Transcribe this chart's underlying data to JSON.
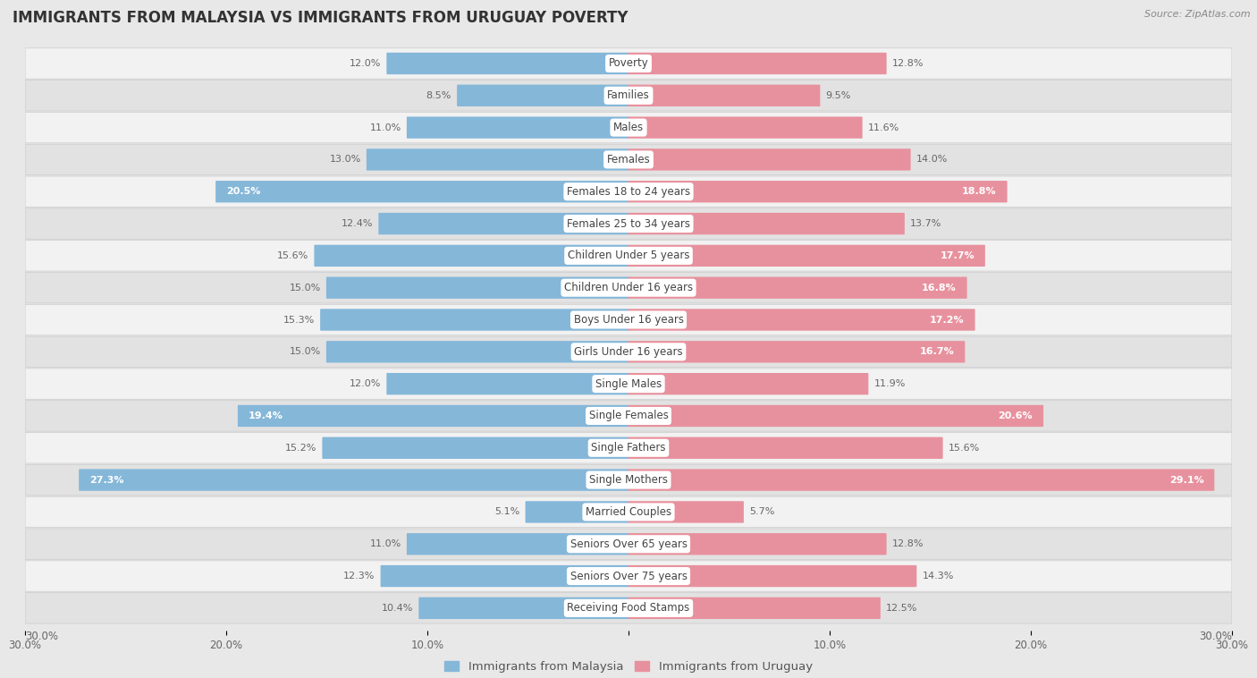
{
  "title": "IMMIGRANTS FROM MALAYSIA VS IMMIGRANTS FROM URUGUAY POVERTY",
  "source": "Source: ZipAtlas.com",
  "categories": [
    "Poverty",
    "Families",
    "Males",
    "Females",
    "Females 18 to 24 years",
    "Females 25 to 34 years",
    "Children Under 5 years",
    "Children Under 16 years",
    "Boys Under 16 years",
    "Girls Under 16 years",
    "Single Males",
    "Single Females",
    "Single Fathers",
    "Single Mothers",
    "Married Couples",
    "Seniors Over 65 years",
    "Seniors Over 75 years",
    "Receiving Food Stamps"
  ],
  "malaysia_values": [
    12.0,
    8.5,
    11.0,
    13.0,
    20.5,
    12.4,
    15.6,
    15.0,
    15.3,
    15.0,
    12.0,
    19.4,
    15.2,
    27.3,
    5.1,
    11.0,
    12.3,
    10.4
  ],
  "uruguay_values": [
    12.8,
    9.5,
    11.6,
    14.0,
    18.8,
    13.7,
    17.7,
    16.8,
    17.2,
    16.7,
    11.9,
    20.6,
    15.6,
    29.1,
    5.7,
    12.8,
    14.3,
    12.5
  ],
  "malaysia_color": "#85b7d9",
  "uruguay_color": "#e8919e",
  "malaysia_label": "Immigrants from Malaysia",
  "uruguay_label": "Immigrants from Uruguay",
  "xlim": 30.0,
  "bg_color": "#e8e8e8",
  "row_color_even": "#f2f2f2",
  "row_color_odd": "#e2e2e2",
  "title_fontsize": 12,
  "label_fontsize": 8.5,
  "value_fontsize": 8,
  "legend_fontsize": 9.5,
  "tick_fontsize": 8.5,
  "value_threshold_malaysia": 16.0,
  "value_threshold_uruguay": 16.0
}
